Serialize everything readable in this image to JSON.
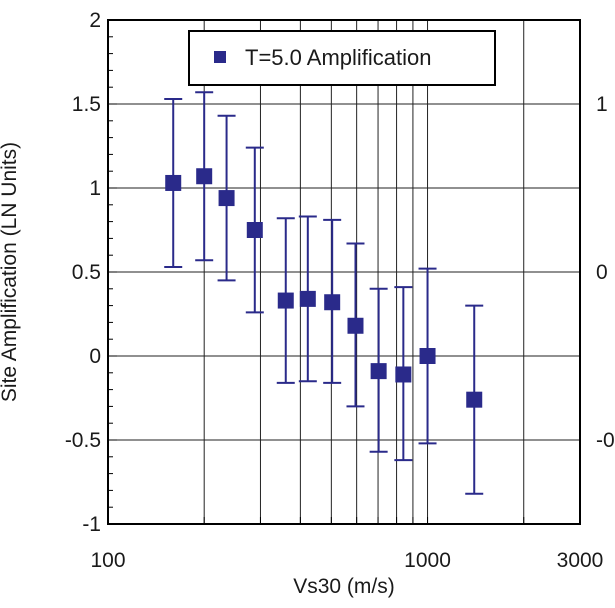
{
  "chart_data": {
    "type": "scatter",
    "xscale": "log",
    "xlim": [
      100,
      3000
    ],
    "ylim": [
      -1,
      2
    ],
    "xlabel": "Vs30 (m/s)",
    "ylabel": "Site Amplification (LN Units)",
    "grid": true,
    "legend_position": "top",
    "x_ticks": [
      {
        "value": 100,
        "label": "100"
      },
      {
        "value": 1000,
        "label": "1000"
      },
      {
        "value": 3000,
        "label": "3000"
      }
    ],
    "y_ticks": [
      {
        "value": 2,
        "label": "2"
      },
      {
        "value": 1.5,
        "label": "1.5"
      },
      {
        "value": 1,
        "label": "1"
      },
      {
        "value": 0.5,
        "label": "0.5"
      },
      {
        "value": 0,
        "label": "0"
      },
      {
        "value": -0.5,
        "label": "-0.5"
      },
      {
        "value": -1,
        "label": "-1"
      }
    ],
    "x_gridlines": [
      200,
      300,
      400,
      500,
      600,
      700,
      800,
      900,
      1000,
      2000
    ],
    "y_gridlines": [
      1.5,
      1,
      0.5,
      0,
      -0.5
    ],
    "series": [
      {
        "name": "T=5.0 Amplification",
        "color": "#2a2a8a",
        "points": [
          {
            "x": 160,
            "y": 1.03,
            "lo": 0.53,
            "hi": 1.53
          },
          {
            "x": 200,
            "y": 1.07,
            "lo": 0.57,
            "hi": 1.57
          },
          {
            "x": 235,
            "y": 0.94,
            "lo": 0.45,
            "hi": 1.43
          },
          {
            "x": 288,
            "y": 0.75,
            "lo": 0.26,
            "hi": 1.24
          },
          {
            "x": 360,
            "y": 0.33,
            "lo": -0.16,
            "hi": 0.82
          },
          {
            "x": 422,
            "y": 0.34,
            "lo": -0.15,
            "hi": 0.83
          },
          {
            "x": 503,
            "y": 0.32,
            "lo": -0.16,
            "hi": 0.81
          },
          {
            "x": 595,
            "y": 0.18,
            "lo": -0.3,
            "hi": 0.67
          },
          {
            "x": 703,
            "y": -0.09,
            "lo": -0.57,
            "hi": 0.4
          },
          {
            "x": 840,
            "y": -0.11,
            "lo": -0.62,
            "hi": 0.41
          },
          {
            "x": 1000,
            "y": 0.0,
            "lo": -0.52,
            "hi": 0.52
          },
          {
            "x": 1400,
            "y": -0.26,
            "lo": -0.82,
            "hi": 0.3
          }
        ]
      }
    ],
    "clipped_right_labels": [
      {
        "text": "1",
        "y": 1.5
      },
      {
        "text": "0",
        "y": 0.5
      },
      {
        "text": "-0",
        "y": -0.5
      }
    ]
  }
}
